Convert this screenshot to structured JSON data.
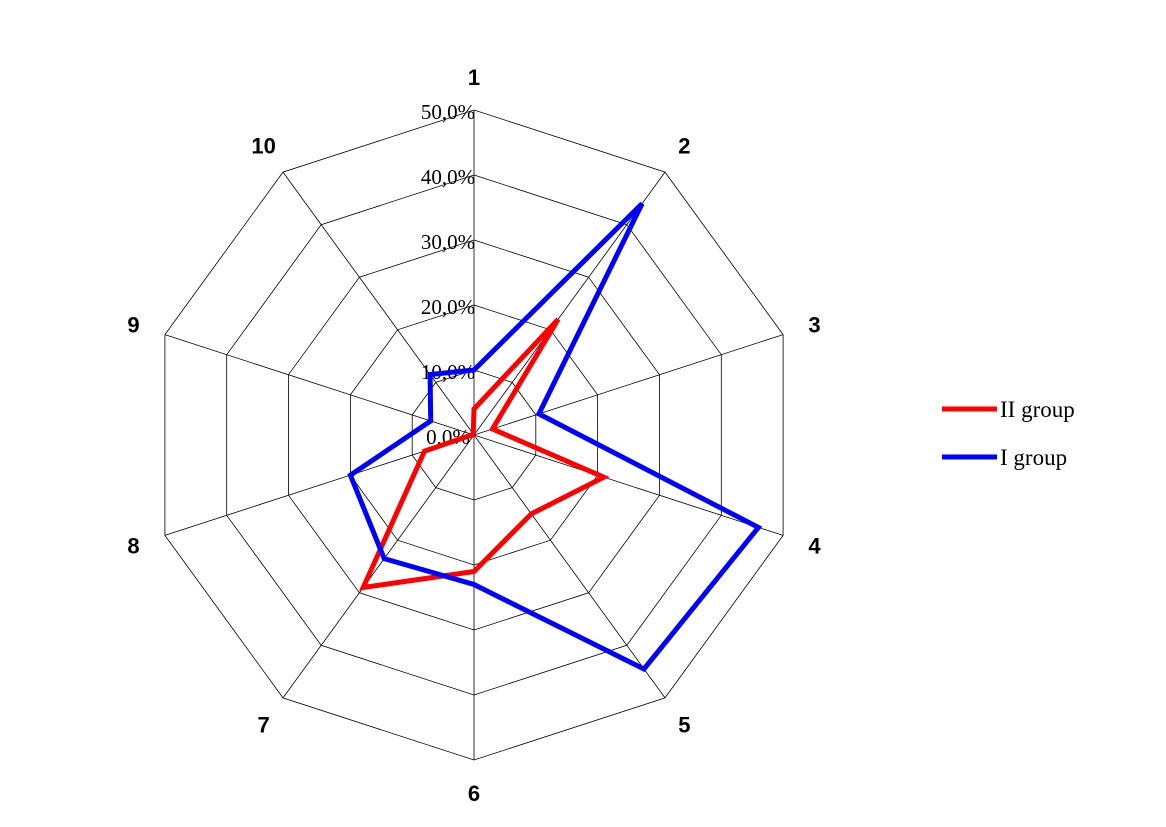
{
  "chart_data": {
    "type": "radar",
    "categories": [
      "1",
      "2",
      "3",
      "4",
      "5",
      "6",
      "7",
      "8",
      "9",
      "10"
    ],
    "ticks": [
      "0,0%",
      "10,0%",
      "20,0%",
      "30,0%",
      "40,0%",
      "50,0%"
    ],
    "rmin": 0,
    "rmax": 50,
    "grid": true,
    "legend_position": "right",
    "series": [
      {
        "name": "II group",
        "color": "#ff0000",
        "values": [
          4,
          22,
          3,
          21,
          15,
          21,
          29,
          8,
          0.2,
          0.2
        ]
      },
      {
        "name": "I group",
        "color": "#0000ff",
        "values": [
          10,
          44,
          10.5,
          46,
          44.5,
          23,
          23.5,
          20,
          7,
          11.5
        ]
      }
    ]
  }
}
